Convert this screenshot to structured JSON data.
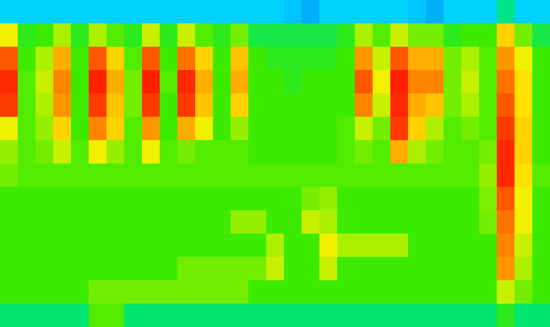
{
  "chart_data": {
    "type": "heatmap",
    "tick_labels": false,
    "zlim": [
      0,
      1
    ],
    "cells": [
      [
        0.3,
        0.3,
        0.3,
        0.3,
        0.3,
        0.3,
        0.3,
        0.3,
        0.3,
        0.3,
        0.3,
        0.3,
        0.3,
        0.3,
        0.3,
        0.3,
        0.28,
        0.25,
        0.3,
        0.3,
        0.3,
        0.3,
        0.3,
        0.28,
        0.25,
        0.3,
        0.3,
        0.3,
        0.4,
        0.3,
        0.3
      ],
      [
        0.65,
        0.48,
        0.5,
        0.6,
        0.48,
        0.6,
        0.52,
        0.48,
        0.62,
        0.48,
        0.62,
        0.52,
        0.48,
        0.55,
        0.45,
        0.45,
        0.45,
        0.45,
        0.45,
        0.48,
        0.6,
        0.52,
        0.62,
        0.55,
        0.55,
        0.48,
        0.5,
        0.5,
        0.7,
        0.55,
        0.45
      ],
      [
        0.85,
        0.5,
        0.6,
        0.75,
        0.5,
        0.85,
        0.7,
        0.52,
        0.85,
        0.5,
        0.82,
        0.7,
        0.5,
        0.72,
        0.5,
        0.48,
        0.48,
        0.48,
        0.48,
        0.5,
        0.78,
        0.62,
        0.85,
        0.75,
        0.75,
        0.55,
        0.6,
        0.52,
        0.78,
        0.65,
        0.5
      ],
      [
        0.9,
        0.52,
        0.62,
        0.8,
        0.5,
        0.92,
        0.75,
        0.55,
        0.92,
        0.52,
        0.9,
        0.75,
        0.5,
        0.75,
        0.5,
        0.5,
        0.48,
        0.5,
        0.5,
        0.5,
        0.85,
        0.65,
        0.92,
        0.8,
        0.8,
        0.55,
        0.62,
        0.52,
        0.82,
        0.68,
        0.5
      ],
      [
        0.88,
        0.52,
        0.6,
        0.78,
        0.5,
        0.88,
        0.72,
        0.55,
        0.88,
        0.5,
        0.88,
        0.72,
        0.5,
        0.7,
        0.5,
        0.5,
        0.5,
        0.5,
        0.5,
        0.5,
        0.8,
        0.62,
        0.9,
        0.75,
        0.72,
        0.55,
        0.6,
        0.52,
        0.85,
        0.68,
        0.5
      ],
      [
        0.65,
        0.52,
        0.58,
        0.7,
        0.5,
        0.8,
        0.7,
        0.52,
        0.78,
        0.5,
        0.75,
        0.65,
        0.5,
        0.58,
        0.5,
        0.5,
        0.5,
        0.5,
        0.5,
        0.52,
        0.62,
        0.55,
        0.88,
        0.7,
        0.6,
        0.52,
        0.55,
        0.52,
        0.88,
        0.7,
        0.5
      ],
      [
        0.58,
        0.52,
        0.55,
        0.62,
        0.52,
        0.65,
        0.58,
        0.52,
        0.65,
        0.52,
        0.55,
        0.52,
        0.52,
        0.52,
        0.5,
        0.5,
        0.5,
        0.5,
        0.5,
        0.52,
        0.55,
        0.52,
        0.75,
        0.6,
        0.55,
        0.52,
        0.52,
        0.55,
        0.9,
        0.7,
        0.5
      ],
      [
        0.55,
        0.52,
        0.52,
        0.52,
        0.52,
        0.52,
        0.52,
        0.52,
        0.52,
        0.52,
        0.52,
        0.52,
        0.52,
        0.52,
        0.52,
        0.52,
        0.52,
        0.52,
        0.52,
        0.52,
        0.52,
        0.52,
        0.52,
        0.52,
        0.52,
        0.52,
        0.52,
        0.58,
        0.9,
        0.68,
        0.52
      ],
      [
        0.5,
        0.5,
        0.5,
        0.5,
        0.5,
        0.5,
        0.5,
        0.5,
        0.5,
        0.5,
        0.5,
        0.5,
        0.5,
        0.5,
        0.5,
        0.5,
        0.5,
        0.55,
        0.58,
        0.5,
        0.5,
        0.5,
        0.5,
        0.5,
        0.5,
        0.5,
        0.5,
        0.56,
        0.85,
        0.65,
        0.5
      ],
      [
        0.5,
        0.5,
        0.5,
        0.5,
        0.5,
        0.5,
        0.5,
        0.5,
        0.5,
        0.5,
        0.5,
        0.5,
        0.5,
        0.58,
        0.58,
        0.5,
        0.5,
        0.62,
        0.6,
        0.5,
        0.5,
        0.5,
        0.5,
        0.5,
        0.5,
        0.5,
        0.5,
        0.55,
        0.82,
        0.65,
        0.5
      ],
      [
        0.5,
        0.5,
        0.5,
        0.5,
        0.5,
        0.5,
        0.5,
        0.5,
        0.5,
        0.5,
        0.5,
        0.5,
        0.5,
        0.5,
        0.5,
        0.6,
        0.5,
        0.5,
        0.65,
        0.6,
        0.6,
        0.6,
        0.6,
        0.5,
        0.5,
        0.5,
        0.5,
        0.5,
        0.8,
        0.62,
        0.5
      ],
      [
        0.5,
        0.5,
        0.5,
        0.5,
        0.5,
        0.5,
        0.5,
        0.5,
        0.5,
        0.5,
        0.55,
        0.55,
        0.55,
        0.55,
        0.55,
        0.62,
        0.5,
        0.5,
        0.62,
        0.5,
        0.5,
        0.5,
        0.5,
        0.5,
        0.5,
        0.5,
        0.5,
        0.5,
        0.78,
        0.6,
        0.5
      ],
      [
        0.5,
        0.5,
        0.5,
        0.5,
        0.5,
        0.55,
        0.55,
        0.55,
        0.55,
        0.55,
        0.55,
        0.55,
        0.55,
        0.55,
        0.5,
        0.5,
        0.5,
        0.5,
        0.5,
        0.5,
        0.5,
        0.5,
        0.5,
        0.5,
        0.5,
        0.5,
        0.5,
        0.5,
        0.62,
        0.55,
        0.5
      ],
      [
        0.42,
        0.42,
        0.42,
        0.42,
        0.42,
        0.52,
        0.52,
        0.42,
        0.42,
        0.42,
        0.42,
        0.42,
        0.42,
        0.42,
        0.42,
        0.42,
        0.42,
        0.42,
        0.42,
        0.42,
        0.42,
        0.42,
        0.42,
        0.42,
        0.42,
        0.42,
        0.42,
        0.42,
        0.48,
        0.42,
        0.42
      ]
    ]
  }
}
